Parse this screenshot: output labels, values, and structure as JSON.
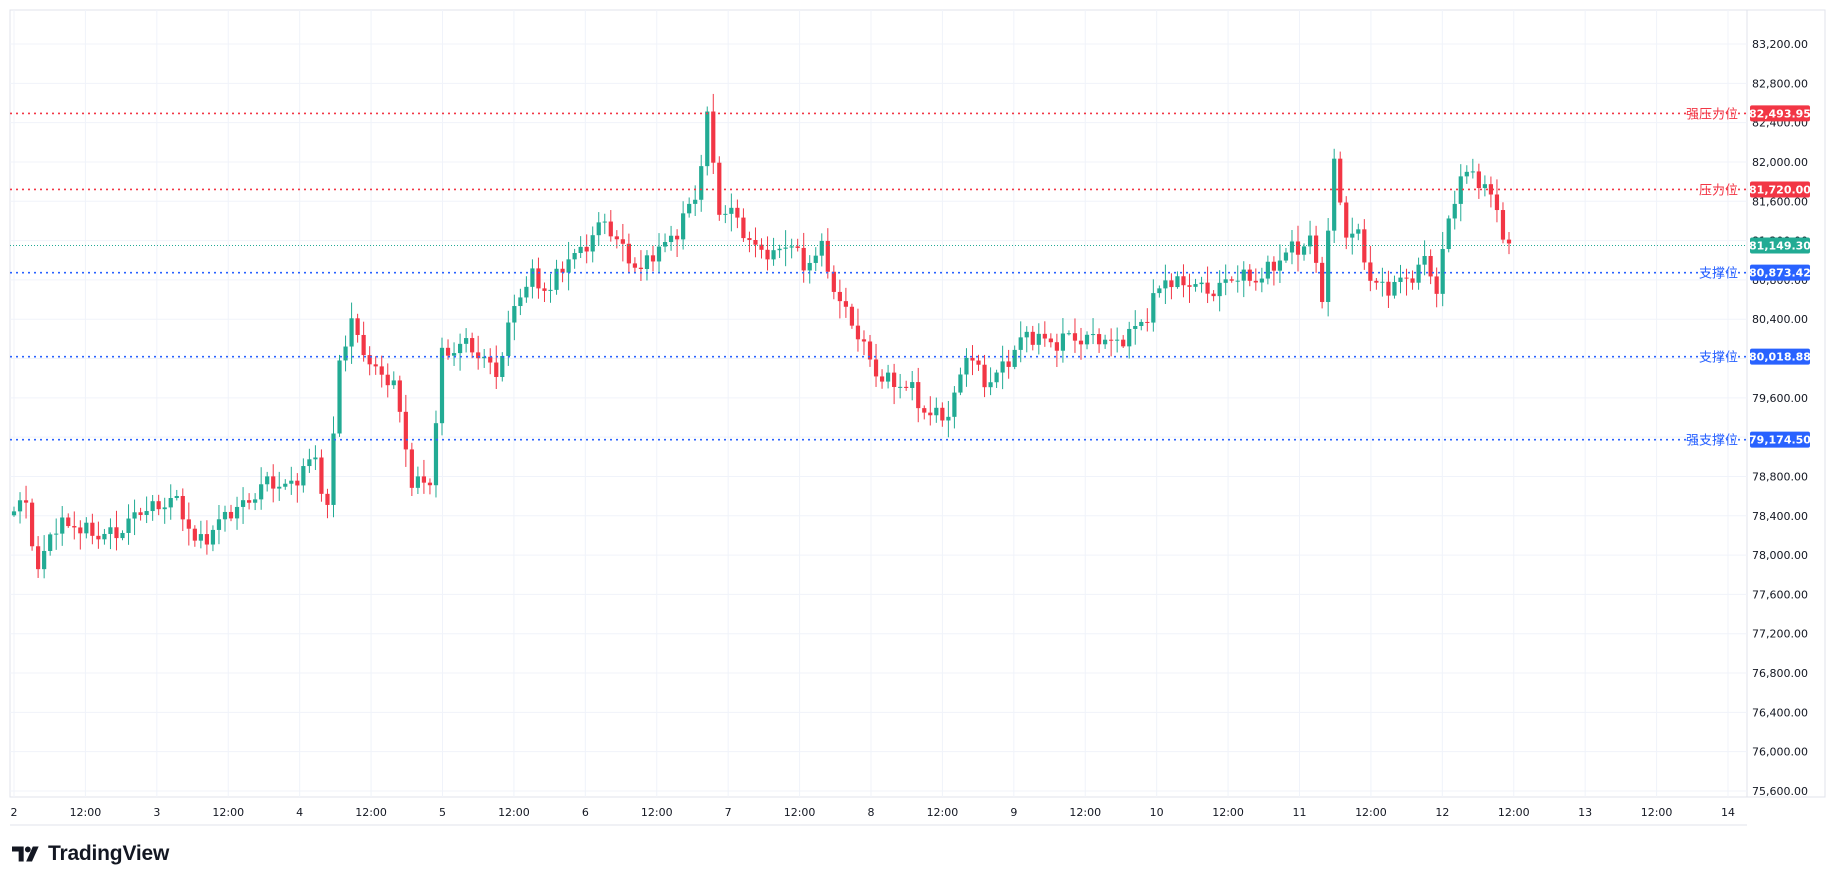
{
  "brand": {
    "name": "TradingView",
    "logo_icon": "tradingview-logo-icon"
  },
  "colors": {
    "up": "#22ab94",
    "down": "#f23645",
    "resistance": "#f23645",
    "support": "#2962ff",
    "last_price": "#22ab94",
    "grid": "#f0f3fa",
    "axis_text": "#131722"
  },
  "chart_data": {
    "type": "candlestick",
    "title": "",
    "xlabel": "",
    "ylabel": "",
    "grid": true,
    "ylim": [
      75400,
      83600
    ],
    "y_ticks": [
      "83,200.00",
      "82,800.00",
      "82,400.00",
      "82,000.00",
      "81,600.00",
      "81,200.00",
      "80,800.00",
      "80,400.00",
      "80,000.00",
      "79,600.00",
      "79,200.00",
      "78,800.00",
      "78,400.00",
      "78,000.00",
      "77,600.00",
      "77,200.00",
      "76,800.00",
      "76,400.00",
      "76,000.00",
      "75,600.00"
    ],
    "x_ticks": [
      "2",
      "12:00",
      "3",
      "12:00",
      "4",
      "12:00",
      "5",
      "12:00",
      "6",
      "12:00",
      "7",
      "12:00",
      "8",
      "12:00",
      "9",
      "12:00",
      "10",
      "12:00",
      "11",
      "12:00",
      "12",
      "12:00",
      "13",
      "12:00",
      "14"
    ],
    "price_levels": [
      {
        "label": "强压力位",
        "price": 82493.95,
        "price_text": "82,493.95",
        "kind": "resistance"
      },
      {
        "label": "压力位",
        "price": 81720.0,
        "price_text": "81,720.00",
        "kind": "resistance"
      },
      {
        "label": "支撑位",
        "price": 80873.42,
        "price_text": "80,873.42",
        "kind": "support"
      },
      {
        "label": "支撑位",
        "price": 80018.88,
        "price_text": "80,018.88",
        "kind": "support"
      },
      {
        "label": "强支撑位",
        "price": 79174.5,
        "price_text": "79,174.50",
        "kind": "support"
      }
    ],
    "last_price": {
      "price": 81149.3,
      "price_text": "81,149.30"
    },
    "ohlc_anchors": [
      [
        0,
        78400
      ],
      [
        2,
        78550
      ],
      [
        4,
        77850
      ],
      [
        6,
        78200
      ],
      [
        10,
        78350
      ],
      [
        14,
        78150
      ],
      [
        18,
        78300
      ],
      [
        22,
        78450
      ],
      [
        26,
        78600
      ],
      [
        30,
        78150
      ],
      [
        34,
        78300
      ],
      [
        38,
        78550
      ],
      [
        42,
        78700
      ],
      [
        46,
        78750
      ],
      [
        50,
        78950
      ],
      [
        52,
        78500
      ],
      [
        54,
        80000
      ],
      [
        56,
        80300
      ],
      [
        60,
        79900
      ],
      [
        63,
        79700
      ],
      [
        66,
        78800
      ],
      [
        69,
        78700
      ],
      [
        71,
        80000
      ],
      [
        74,
        80200
      ],
      [
        77,
        80000
      ],
      [
        80,
        79900
      ],
      [
        83,
        80500
      ],
      [
        86,
        80850
      ],
      [
        89,
        80700
      ],
      [
        92,
        81000
      ],
      [
        95,
        81200
      ],
      [
        98,
        81350
      ],
      [
        101,
        81150
      ],
      [
        104,
        80850
      ],
      [
        107,
        81150
      ],
      [
        110,
        81300
      ],
      [
        113,
        81600
      ],
      [
        115,
        82500
      ],
      [
        117,
        81500
      ],
      [
        120,
        81400
      ],
      [
        123,
        81150
      ],
      [
        126,
        81000
      ],
      [
        129,
        81250
      ],
      [
        131,
        80900
      ],
      [
        134,
        81100
      ],
      [
        137,
        80600
      ],
      [
        140,
        80200
      ],
      [
        143,
        79900
      ],
      [
        146,
        79700
      ],
      [
        149,
        79700
      ],
      [
        152,
        79400
      ],
      [
        155,
        79400
      ],
      [
        158,
        80100
      ],
      [
        161,
        79700
      ],
      [
        164,
        79950
      ],
      [
        167,
        80150
      ],
      [
        170,
        80250
      ],
      [
        173,
        80150
      ],
      [
        176,
        80200
      ],
      [
        179,
        80250
      ],
      [
        182,
        80100
      ],
      [
        185,
        80300
      ],
      [
        188,
        80400
      ],
      [
        191,
        80850
      ],
      [
        194,
        80750
      ],
      [
        197,
        80700
      ],
      [
        200,
        80750
      ],
      [
        203,
        80800
      ],
      [
        206,
        80850
      ],
      [
        209,
        80900
      ],
      [
        212,
        81150
      ],
      [
        215,
        81200
      ],
      [
        217,
        80600
      ],
      [
        219,
        82000
      ],
      [
        221,
        81300
      ],
      [
        223,
        81200
      ],
      [
        225,
        80800
      ],
      [
        228,
        80750
      ],
      [
        231,
        80750
      ],
      [
        234,
        81050
      ],
      [
        236,
        80700
      ],
      [
        238,
        81350
      ],
      [
        240,
        81900
      ],
      [
        242,
        81900
      ],
      [
        244,
        81700
      ],
      [
        246,
        81500
      ],
      [
        248,
        81150
      ]
    ],
    "series_note": ""
  }
}
